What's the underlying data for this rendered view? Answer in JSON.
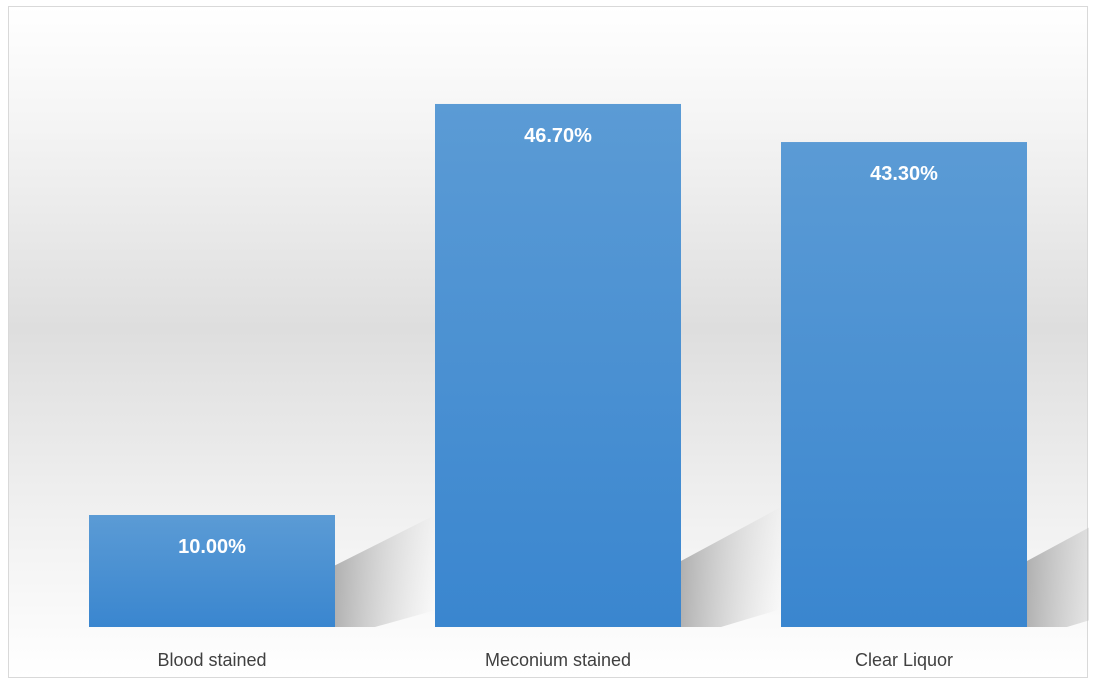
{
  "chart_data": {
    "type": "bar",
    "categories": [
      "Blood stained",
      "Meconium stained",
      "Clear Liquor"
    ],
    "values": [
      10.0,
      46.7,
      43.3
    ],
    "data_labels": [
      "10.00%",
      "46.70%",
      "43.30%"
    ],
    "ylim": [
      0,
      50
    ],
    "grid": false,
    "legend": "none",
    "bar_color_top": "#5b9bd5",
    "bar_color_bottom": "#3a86cf"
  }
}
